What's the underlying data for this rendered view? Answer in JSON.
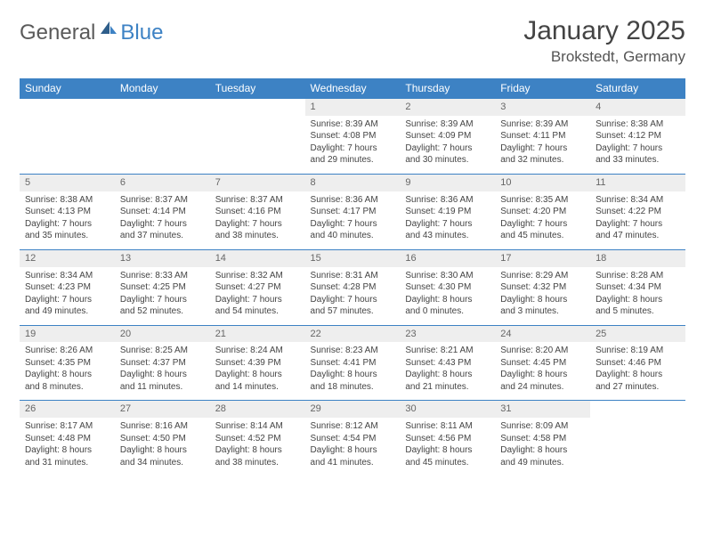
{
  "logo": {
    "part1": "General",
    "part2": "Blue"
  },
  "title": "January 2025",
  "location": "Brokstedt, Germany",
  "colors": {
    "header_bg": "#3d82c4",
    "header_fg": "#ffffff",
    "daynum_bg": "#eeeeee",
    "border": "#3d82c4",
    "text": "#444444"
  },
  "weekdays": [
    "Sunday",
    "Monday",
    "Tuesday",
    "Wednesday",
    "Thursday",
    "Friday",
    "Saturday"
  ],
  "weeks": [
    [
      {
        "n": "",
        "sr": "",
        "ss": "",
        "d1": "",
        "d2": "",
        "empty": true
      },
      {
        "n": "",
        "sr": "",
        "ss": "",
        "d1": "",
        "d2": "",
        "empty": true
      },
      {
        "n": "",
        "sr": "",
        "ss": "",
        "d1": "",
        "d2": "",
        "empty": true
      },
      {
        "n": "1",
        "sr": "Sunrise: 8:39 AM",
        "ss": "Sunset: 4:08 PM",
        "d1": "Daylight: 7 hours",
        "d2": "and 29 minutes."
      },
      {
        "n": "2",
        "sr": "Sunrise: 8:39 AM",
        "ss": "Sunset: 4:09 PM",
        "d1": "Daylight: 7 hours",
        "d2": "and 30 minutes."
      },
      {
        "n": "3",
        "sr": "Sunrise: 8:39 AM",
        "ss": "Sunset: 4:11 PM",
        "d1": "Daylight: 7 hours",
        "d2": "and 32 minutes."
      },
      {
        "n": "4",
        "sr": "Sunrise: 8:38 AM",
        "ss": "Sunset: 4:12 PM",
        "d1": "Daylight: 7 hours",
        "d2": "and 33 minutes."
      }
    ],
    [
      {
        "n": "5",
        "sr": "Sunrise: 8:38 AM",
        "ss": "Sunset: 4:13 PM",
        "d1": "Daylight: 7 hours",
        "d2": "and 35 minutes."
      },
      {
        "n": "6",
        "sr": "Sunrise: 8:37 AM",
        "ss": "Sunset: 4:14 PM",
        "d1": "Daylight: 7 hours",
        "d2": "and 37 minutes."
      },
      {
        "n": "7",
        "sr": "Sunrise: 8:37 AM",
        "ss": "Sunset: 4:16 PM",
        "d1": "Daylight: 7 hours",
        "d2": "and 38 minutes."
      },
      {
        "n": "8",
        "sr": "Sunrise: 8:36 AM",
        "ss": "Sunset: 4:17 PM",
        "d1": "Daylight: 7 hours",
        "d2": "and 40 minutes."
      },
      {
        "n": "9",
        "sr": "Sunrise: 8:36 AM",
        "ss": "Sunset: 4:19 PM",
        "d1": "Daylight: 7 hours",
        "d2": "and 43 minutes."
      },
      {
        "n": "10",
        "sr": "Sunrise: 8:35 AM",
        "ss": "Sunset: 4:20 PM",
        "d1": "Daylight: 7 hours",
        "d2": "and 45 minutes."
      },
      {
        "n": "11",
        "sr": "Sunrise: 8:34 AM",
        "ss": "Sunset: 4:22 PM",
        "d1": "Daylight: 7 hours",
        "d2": "and 47 minutes."
      }
    ],
    [
      {
        "n": "12",
        "sr": "Sunrise: 8:34 AM",
        "ss": "Sunset: 4:23 PM",
        "d1": "Daylight: 7 hours",
        "d2": "and 49 minutes."
      },
      {
        "n": "13",
        "sr": "Sunrise: 8:33 AM",
        "ss": "Sunset: 4:25 PM",
        "d1": "Daylight: 7 hours",
        "d2": "and 52 minutes."
      },
      {
        "n": "14",
        "sr": "Sunrise: 8:32 AM",
        "ss": "Sunset: 4:27 PM",
        "d1": "Daylight: 7 hours",
        "d2": "and 54 minutes."
      },
      {
        "n": "15",
        "sr": "Sunrise: 8:31 AM",
        "ss": "Sunset: 4:28 PM",
        "d1": "Daylight: 7 hours",
        "d2": "and 57 minutes."
      },
      {
        "n": "16",
        "sr": "Sunrise: 8:30 AM",
        "ss": "Sunset: 4:30 PM",
        "d1": "Daylight: 8 hours",
        "d2": "and 0 minutes."
      },
      {
        "n": "17",
        "sr": "Sunrise: 8:29 AM",
        "ss": "Sunset: 4:32 PM",
        "d1": "Daylight: 8 hours",
        "d2": "and 3 minutes."
      },
      {
        "n": "18",
        "sr": "Sunrise: 8:28 AM",
        "ss": "Sunset: 4:34 PM",
        "d1": "Daylight: 8 hours",
        "d2": "and 5 minutes."
      }
    ],
    [
      {
        "n": "19",
        "sr": "Sunrise: 8:26 AM",
        "ss": "Sunset: 4:35 PM",
        "d1": "Daylight: 8 hours",
        "d2": "and 8 minutes."
      },
      {
        "n": "20",
        "sr": "Sunrise: 8:25 AM",
        "ss": "Sunset: 4:37 PM",
        "d1": "Daylight: 8 hours",
        "d2": "and 11 minutes."
      },
      {
        "n": "21",
        "sr": "Sunrise: 8:24 AM",
        "ss": "Sunset: 4:39 PM",
        "d1": "Daylight: 8 hours",
        "d2": "and 14 minutes."
      },
      {
        "n": "22",
        "sr": "Sunrise: 8:23 AM",
        "ss": "Sunset: 4:41 PM",
        "d1": "Daylight: 8 hours",
        "d2": "and 18 minutes."
      },
      {
        "n": "23",
        "sr": "Sunrise: 8:21 AM",
        "ss": "Sunset: 4:43 PM",
        "d1": "Daylight: 8 hours",
        "d2": "and 21 minutes."
      },
      {
        "n": "24",
        "sr": "Sunrise: 8:20 AM",
        "ss": "Sunset: 4:45 PM",
        "d1": "Daylight: 8 hours",
        "d2": "and 24 minutes."
      },
      {
        "n": "25",
        "sr": "Sunrise: 8:19 AM",
        "ss": "Sunset: 4:46 PM",
        "d1": "Daylight: 8 hours",
        "d2": "and 27 minutes."
      }
    ],
    [
      {
        "n": "26",
        "sr": "Sunrise: 8:17 AM",
        "ss": "Sunset: 4:48 PM",
        "d1": "Daylight: 8 hours",
        "d2": "and 31 minutes."
      },
      {
        "n": "27",
        "sr": "Sunrise: 8:16 AM",
        "ss": "Sunset: 4:50 PM",
        "d1": "Daylight: 8 hours",
        "d2": "and 34 minutes."
      },
      {
        "n": "28",
        "sr": "Sunrise: 8:14 AM",
        "ss": "Sunset: 4:52 PM",
        "d1": "Daylight: 8 hours",
        "d2": "and 38 minutes."
      },
      {
        "n": "29",
        "sr": "Sunrise: 8:12 AM",
        "ss": "Sunset: 4:54 PM",
        "d1": "Daylight: 8 hours",
        "d2": "and 41 minutes."
      },
      {
        "n": "30",
        "sr": "Sunrise: 8:11 AM",
        "ss": "Sunset: 4:56 PM",
        "d1": "Daylight: 8 hours",
        "d2": "and 45 minutes."
      },
      {
        "n": "31",
        "sr": "Sunrise: 8:09 AM",
        "ss": "Sunset: 4:58 PM",
        "d1": "Daylight: 8 hours",
        "d2": "and 49 minutes."
      },
      {
        "n": "",
        "sr": "",
        "ss": "",
        "d1": "",
        "d2": "",
        "empty": true
      }
    ]
  ]
}
